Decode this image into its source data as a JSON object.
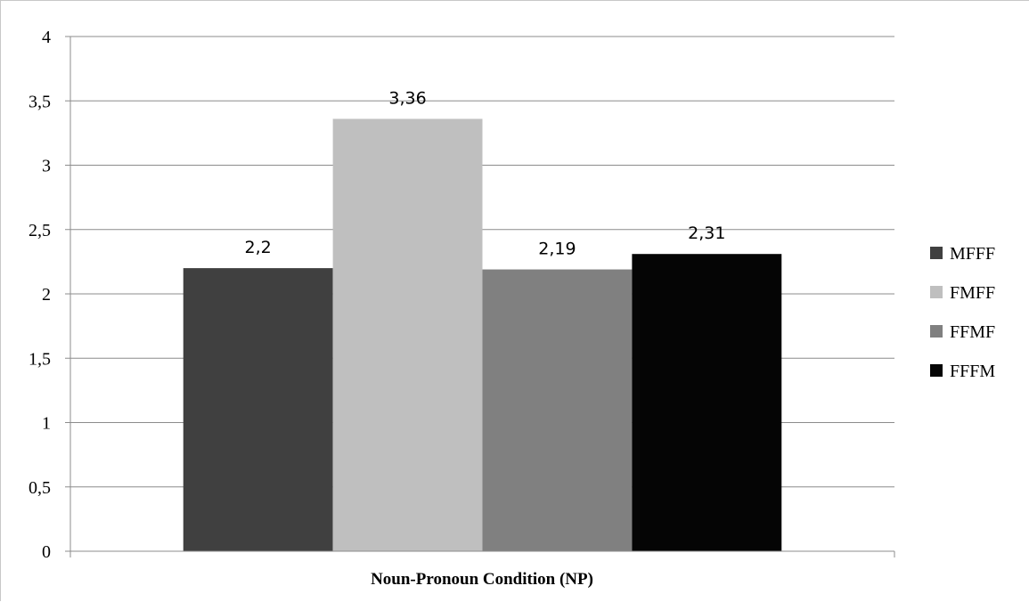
{
  "chart_data": {
    "type": "bar",
    "categories": [
      "Noun-Pronoun Condition (NP)"
    ],
    "series": [
      {
        "name": "MFFF",
        "values": [
          2.2
        ],
        "label": "2,2",
        "color": "#404040"
      },
      {
        "name": "FMFF",
        "values": [
          3.36
        ],
        "label": "3,36",
        "color": "#bfbfbf"
      },
      {
        "name": "FFMF",
        "values": [
          2.19
        ],
        "label": "2,19",
        "color": "#808080"
      },
      {
        "name": "FFFM",
        "values": [
          2.31
        ],
        "label": "2,31",
        "color": "#050505"
      }
    ],
    "title": "",
    "xlabel": "Noun-Pronoun Condition (NP)",
    "ylabel": "",
    "ylim": [
      0,
      4
    ],
    "yticks": [
      0,
      0.5,
      1,
      1.5,
      2,
      2.5,
      3,
      3.5,
      4
    ],
    "ytick_labels": [
      "0",
      "0,5",
      "1",
      "1,5",
      "2",
      "2,5",
      "3",
      "3,5",
      "4"
    ],
    "grid": true,
    "legend_position": "right"
  }
}
